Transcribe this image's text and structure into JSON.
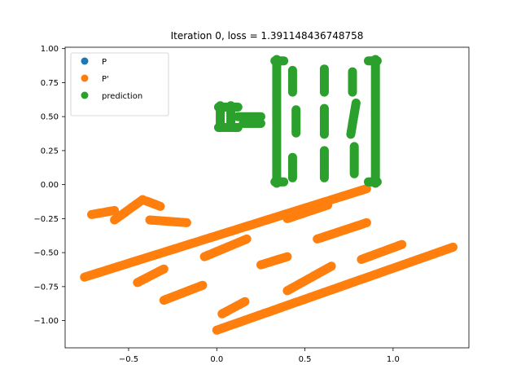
{
  "chart_data": {
    "type": "scatter",
    "title": "Iteration 0, loss = 1.391148436748758",
    "xlabel": "",
    "ylabel": "",
    "xlim": [
      -0.86,
      1.43
    ],
    "ylim": [
      -1.2,
      1.01
    ],
    "x_ticks": [
      "−0.5",
      "0.0",
      "0.5",
      "1.0"
    ],
    "x_tick_values": [
      -0.5,
      0.0,
      0.5,
      1.0
    ],
    "y_ticks": [
      "−1.00",
      "−0.75",
      "−0.50",
      "−0.25",
      "0.00",
      "0.25",
      "0.50",
      "0.75",
      "1.00"
    ],
    "y_tick_values": [
      -1.0,
      -0.75,
      -0.5,
      -0.25,
      0.0,
      0.25,
      0.5,
      0.75,
      1.0
    ],
    "grid": false,
    "legend_position": "top-left",
    "series": [
      {
        "name": "P",
        "color": "#1f77b4",
        "segments": []
      },
      {
        "name": "P'",
        "color": "#ff7f0e",
        "segments": [
          [
            [
              -0.75,
              -0.68
            ],
            [
              0.85,
              -0.03
            ]
          ],
          [
            [
              -0.71,
              -0.22
            ],
            [
              -0.58,
              -0.19
            ]
          ],
          [
            [
              -0.58,
              -0.26
            ],
            [
              -0.42,
              -0.11
            ]
          ],
          [
            [
              -0.4,
              -0.12
            ],
            [
              -0.32,
              -0.16
            ]
          ],
          [
            [
              -0.38,
              -0.26
            ],
            [
              -0.17,
              -0.28
            ]
          ],
          [
            [
              -0.45,
              -0.72
            ],
            [
              -0.3,
              -0.62
            ]
          ],
          [
            [
              -0.3,
              -0.85
            ],
            [
              -0.08,
              -0.74
            ]
          ],
          [
            [
              -0.07,
              -0.53
            ],
            [
              0.17,
              -0.4
            ]
          ],
          [
            [
              0.25,
              -0.59
            ],
            [
              0.4,
              -0.53
            ]
          ],
          [
            [
              0.4,
              -0.25
            ],
            [
              0.63,
              -0.15
            ]
          ],
          [
            [
              0.0,
              -1.07
            ],
            [
              1.34,
              -0.46
            ]
          ],
          [
            [
              0.03,
              -0.95
            ],
            [
              0.16,
              -0.86
            ]
          ],
          [
            [
              0.4,
              -0.78
            ],
            [
              0.65,
              -0.6
            ]
          ],
          [
            [
              0.57,
              -0.4
            ],
            [
              0.85,
              -0.28
            ]
          ],
          [
            [
              0.82,
              -0.55
            ],
            [
              1.05,
              -0.44
            ]
          ]
        ]
      },
      {
        "name": "prediction",
        "color": "#2ca02c",
        "segments": [
          [
            [
              0.01,
              0.42
            ],
            [
              0.12,
              0.42
            ]
          ],
          [
            [
              0.01,
              0.57
            ],
            [
              0.12,
              0.57
            ]
          ],
          [
            [
              0.02,
              0.42
            ],
            [
              0.02,
              0.58
            ]
          ],
          [
            [
              0.08,
              0.42
            ],
            [
              0.08,
              0.58
            ]
          ],
          [
            [
              0.12,
              0.5
            ],
            [
              0.25,
              0.5
            ]
          ],
          [
            [
              0.15,
              0.45
            ],
            [
              0.25,
              0.45
            ]
          ],
          [
            [
              0.34,
              0.01
            ],
            [
              0.34,
              0.92
            ]
          ],
          [
            [
              0.33,
              0.02
            ],
            [
              0.38,
              0.02
            ]
          ],
          [
            [
              0.33,
              0.91
            ],
            [
              0.38,
              0.91
            ]
          ],
          [
            [
              0.9,
              0.01
            ],
            [
              0.9,
              0.92
            ]
          ],
          [
            [
              0.86,
              0.02
            ],
            [
              0.91,
              0.02
            ]
          ],
          [
            [
              0.86,
              0.91
            ],
            [
              0.91,
              0.91
            ]
          ],
          [
            [
              0.43,
              0.68
            ],
            [
              0.43,
              0.84
            ]
          ],
          [
            [
              0.45,
              0.38
            ],
            [
              0.45,
              0.55
            ]
          ],
          [
            [
              0.43,
              0.05
            ],
            [
              0.43,
              0.2
            ]
          ],
          [
            [
              0.61,
              0.68
            ],
            [
              0.61,
              0.85
            ]
          ],
          [
            [
              0.61,
              0.37
            ],
            [
              0.61,
              0.56
            ]
          ],
          [
            [
              0.61,
              0.05
            ],
            [
              0.61,
              0.25
            ]
          ],
          [
            [
              0.77,
              0.68
            ],
            [
              0.77,
              0.83
            ]
          ],
          [
            [
              0.76,
              0.37
            ],
            [
              0.79,
              0.6
            ]
          ],
          [
            [
              0.78,
              0.08
            ],
            [
              0.78,
              0.28
            ]
          ]
        ]
      }
    ]
  }
}
